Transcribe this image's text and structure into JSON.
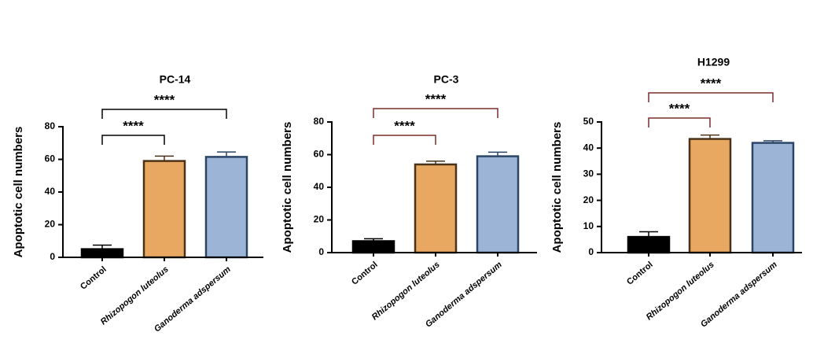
{
  "chart_data": [
    {
      "type": "bar",
      "title": "PC-14",
      "y_label": "Apoptotic cell numbers",
      "categories": [
        "Control",
        "Rhizopogon luteolus",
        "Ganoderma adspersum"
      ],
      "values": [
        5,
        59,
        61.5
      ],
      "errors": [
        2.5,
        3,
        3
      ],
      "colors": [
        "#000000",
        "#e8a862",
        "#9cb5d6"
      ],
      "edge_colors": [
        "#000000",
        "#4a3218",
        "#2b4566"
      ],
      "ylim": [
        0,
        80
      ],
      "yticks": [
        0,
        20,
        40,
        60,
        80
      ],
      "annotations": [
        "****",
        "****"
      ],
      "bracket_color": "#000000"
    },
    {
      "type": "bar",
      "title": "PC-3",
      "y_label": "Apoptotic cell numbers",
      "categories": [
        "Control",
        "Rhizopogon luteolus",
        "Ganoderma adspersum"
      ],
      "values": [
        7,
        54,
        59
      ],
      "errors": [
        1.5,
        2,
        2.5
      ],
      "colors": [
        "#000000",
        "#e8a862",
        "#9cb5d6"
      ],
      "edge_colors": [
        "#000000",
        "#4a3218",
        "#2b4566"
      ],
      "ylim": [
        0,
        80
      ],
      "yticks": [
        0,
        20,
        40,
        60,
        80
      ],
      "annotations": [
        "****",
        "****"
      ],
      "bracket_color": "#7a2e2a"
    },
    {
      "type": "bar",
      "title": "H1299",
      "y_label": "Apoptotic cell numbers",
      "categories": [
        "Control",
        "Rhizopogon luteolus",
        "Ganoderma adspersum"
      ],
      "values": [
        6,
        43.5,
        42
      ],
      "errors": [
        2,
        1.5,
        0.8
      ],
      "colors": [
        "#000000",
        "#e8a862",
        "#9cb5d6"
      ],
      "edge_colors": [
        "#000000",
        "#4a3218",
        "#2b4566"
      ],
      "ylim": [
        0,
        50
      ],
      "yticks": [
        0,
        10,
        20,
        30,
        40,
        50
      ],
      "annotations": [
        "****",
        "****"
      ],
      "bracket_color": "#7a2e2a"
    }
  ]
}
